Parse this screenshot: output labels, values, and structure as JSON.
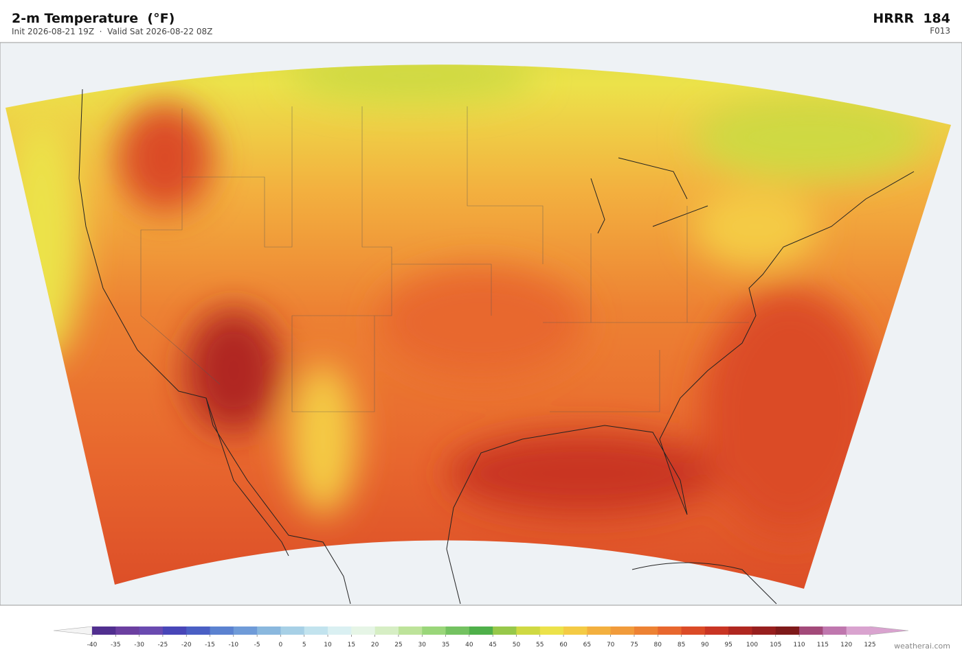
{
  "header": {
    "title": "2-m Temperature  (°F)",
    "subtitle": "Init 2026-08-21 19Z  ·  Valid Sat 2026-08-22 08Z",
    "model": "HRRR  184",
    "forecast_hour": "F013"
  },
  "colorbar": {
    "ticks": [
      -40,
      -35,
      -30,
      -25,
      -20,
      -15,
      -10,
      -5,
      0,
      5,
      10,
      15,
      20,
      25,
      30,
      35,
      40,
      45,
      50,
      55,
      60,
      65,
      70,
      75,
      80,
      85,
      90,
      95,
      100,
      105,
      110,
      115,
      120,
      125
    ],
    "colors": [
      "#512f8f",
      "#6b3fa0",
      "#6a4ab0",
      "#4846b8",
      "#4a5fc4",
      "#5b82d0",
      "#6f9bd8",
      "#8ab8de",
      "#a7d0e6",
      "#c2e3ee",
      "#daf0f2",
      "#e6f5e6",
      "#d6eec4",
      "#bde39a",
      "#9ad67a",
      "#74c261",
      "#4fb04a",
      "#97c84a",
      "#cfd943",
      "#ece24a",
      "#f4cb45",
      "#f3b03f",
      "#f19b3b",
      "#ed8233",
      "#e8672e",
      "#db4b27",
      "#c93524",
      "#b02720",
      "#971f1e",
      "#7e1a1a",
      "#a34a7a",
      "#bf77ae",
      "#d9a3cf"
    ],
    "under_color": "#f4f4f4",
    "over_color": "#d9a3cf"
  },
  "footer": {
    "credit": "weatherai.com"
  }
}
